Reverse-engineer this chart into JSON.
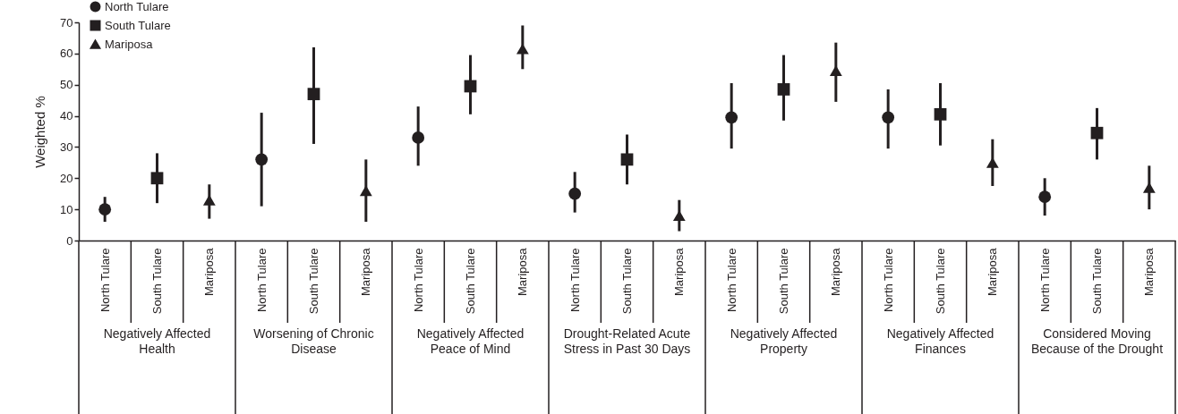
{
  "chart_data": {
    "type": "scatter",
    "ylabel": "Weighted %",
    "categories": [
      "North Tulare",
      "South Tulare",
      "Mariposa",
      "North Tulare",
      "South Tulare",
      "Mariposa",
      "North Tulare",
      "South Tulare",
      "Mariposa",
      "North Tulare",
      "South Tulare",
      "Mariposa",
      "North Tulare",
      "South Tulare",
      "Mariposa",
      "North Tulare",
      "South Tulare",
      "Mariposa",
      "North Tulare",
      "South Tulare",
      "Mariposa"
    ],
    "annotations": [
      "Negatively Affected Health",
      "Worsening of Chronic Disease",
      "Negatively Affected Peace of Mind",
      "Drought-Related Acute Stress in Past 30 Days",
      "Negatively Affected Property",
      "Negatively Affected Finances",
      "Considered Moving Because of the Drought"
    ],
    "series": [
      {
        "name": "North Tulare",
        "color": "#231f20",
        "marker": "circle",
        "values": [
          10,
          null,
          null,
          26,
          null,
          null,
          33,
          null,
          null,
          15,
          null,
          null,
          39.5,
          null,
          null,
          39.5,
          null,
          null,
          14,
          null,
          null
        ],
        "errors": [
          [
            6,
            14
          ],
          null,
          null,
          [
            11,
            41
          ],
          null,
          null,
          [
            24,
            43
          ],
          null,
          null,
          [
            9,
            22
          ],
          null,
          null,
          [
            29.5,
            50.5
          ],
          null,
          null,
          [
            29.5,
            48.5
          ],
          null,
          null,
          [
            8,
            20
          ],
          null,
          null
        ]
      },
      {
        "name": "South Tulare",
        "color": "#231f20",
        "marker": "square",
        "values": [
          null,
          20,
          null,
          null,
          47,
          null,
          null,
          49.5,
          null,
          null,
          26,
          null,
          null,
          48.5,
          null,
          null,
          40.5,
          null,
          null,
          34.5,
          null
        ],
        "errors": [
          null,
          [
            12,
            28
          ],
          null,
          null,
          [
            31,
            62
          ],
          null,
          null,
          [
            40.5,
            59.5
          ],
          null,
          null,
          [
            18,
            34
          ],
          null,
          null,
          [
            38.5,
            59.5
          ],
          null,
          null,
          [
            30.5,
            50.5
          ],
          null,
          null,
          [
            26,
            42.5
          ],
          null
        ]
      },
      {
        "name": "Mariposa",
        "color": "#231f20",
        "marker": "triangle",
        "values": [
          null,
          null,
          13,
          null,
          null,
          16,
          null,
          null,
          61.5,
          null,
          null,
          8,
          null,
          null,
          54.5,
          null,
          null,
          25,
          null,
          null,
          17
        ],
        "errors": [
          null,
          null,
          [
            7,
            18
          ],
          null,
          null,
          [
            6,
            26
          ],
          null,
          null,
          [
            55,
            69
          ],
          null,
          null,
          [
            3,
            13
          ],
          null,
          null,
          [
            44.5,
            63.5
          ],
          null,
          null,
          [
            17.5,
            32.5
          ],
          null,
          null,
          [
            10,
            24
          ]
        ]
      }
    ],
    "ylim": [
      0,
      70
    ],
    "yticks": [
      0,
      10,
      20,
      30,
      40,
      50,
      60,
      70
    ],
    "grid": false,
    "legend": "top left"
  }
}
